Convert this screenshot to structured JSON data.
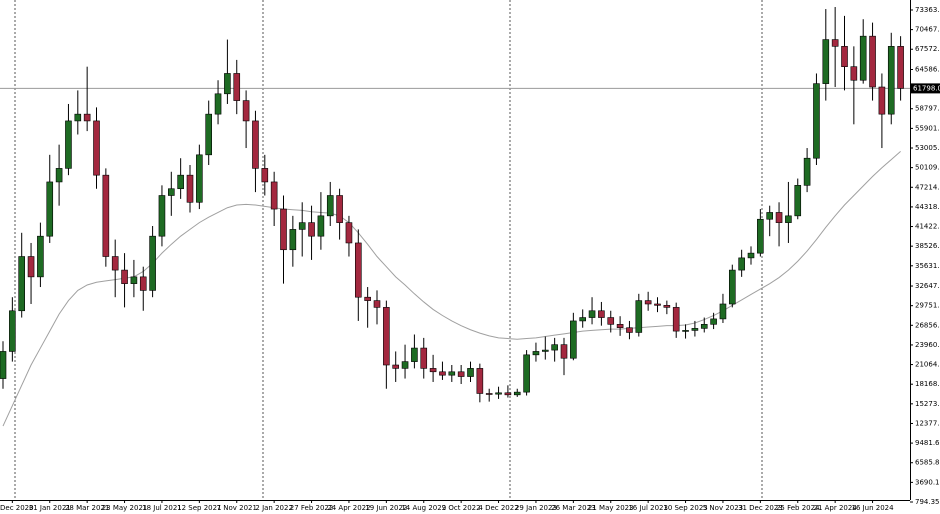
{
  "chart_data": {
    "type": "candlestick",
    "categories": [
      null,
      "Dec 2020",
      null,
      null,
      null,
      "31 Jan 2021",
      null,
      null,
      null,
      "28 Mar 2021",
      null,
      null,
      null,
      "23 May 2021",
      null,
      null,
      null,
      "18 Jul 2021",
      null,
      null,
      null,
      "12 Sep 2021",
      null,
      null,
      null,
      "7 Nov 2021",
      null,
      null,
      null,
      "2 Jan 2022",
      null,
      null,
      null,
      "27 Feb 2022",
      null,
      null,
      null,
      "24 Apr 2022",
      null,
      null,
      null,
      "19 Jun 2022",
      null,
      null,
      null,
      "14 Aug 2022",
      null,
      null,
      null,
      "9 Oct 2022",
      null,
      null,
      null,
      "4 Dec 2022",
      null,
      null,
      null,
      "29 Jan 2023",
      null,
      null,
      null,
      "26 Mar 2023",
      null,
      null,
      null,
      "21 May 2023",
      null,
      null,
      null,
      "16 Jul 2023",
      null,
      null,
      null,
      "10 Sep 2023",
      null,
      null,
      null,
      "5 Nov 2023",
      null,
      null,
      null,
      "31 Dec 2023",
      null,
      null,
      null,
      "25 Feb 2024",
      null,
      null,
      null,
      "21 Apr 2024",
      null,
      null,
      null,
      "16 Jun 2024",
      null,
      null,
      null
    ],
    "open": [
      19000,
      23000,
      29000,
      37000,
      34000,
      40000,
      48000,
      50000,
      57000,
      58000,
      57000,
      49000,
      37000,
      35000,
      33000,
      34000,
      32000,
      40000,
      46000,
      47000,
      49000,
      45000,
      52000,
      58000,
      61000,
      64000,
      60000,
      57000,
      50000,
      48000,
      44000,
      38000,
      41000,
      42000,
      40000,
      43000,
      46000,
      42000,
      39000,
      31000,
      30500,
      29500,
      21000,
      20500,
      21500,
      23500,
      20500,
      20000,
      19500,
      20000,
      19300,
      20500,
      16800,
      16700,
      16900,
      16600,
      17000,
      22500,
      23000,
      23200,
      24000,
      22000,
      27500,
      28000,
      29000,
      28000,
      27000,
      26500,
      25800,
      30500,
      30000,
      29800,
      29500,
      26000,
      26100,
      26400,
      27000,
      27800,
      30000,
      35000,
      36800,
      37500,
      42500,
      43500,
      42000,
      43000,
      47500,
      51500,
      62500,
      69000,
      68000,
      65000,
      63000,
      69500,
      62000,
      58000,
      68000
    ],
    "high": [
      24500,
      31000,
      40500,
      39000,
      42000,
      52000,
      53500,
      59500,
      61500,
      65000,
      59000,
      50000,
      39500,
      37500,
      36500,
      35500,
      41500,
      47500,
      49500,
      51500,
      50500,
      53500,
      60000,
      63000,
      69000,
      66000,
      61500,
      58500,
      52000,
      49500,
      46000,
      43000,
      45000,
      44500,
      46500,
      48000,
      47000,
      43000,
      41000,
      32500,
      32000,
      30500,
      23000,
      24000,
      25500,
      25000,
      22500,
      21500,
      21000,
      21000,
      21500,
      21200,
      17500,
      17800,
      18000,
      17500,
      23200,
      24300,
      25200,
      25000,
      25000,
      28700,
      29200,
      31000,
      30300,
      29000,
      28200,
      27500,
      31500,
      31800,
      31000,
      30500,
      30200,
      27000,
      27500,
      28000,
      28700,
      31500,
      35800,
      38000,
      38500,
      44000,
      44500,
      45000,
      48000,
      48500,
      53000,
      64000,
      73500,
      73800,
      72500,
      68000,
      72000,
      71500,
      64000,
      70000,
      69500
    ],
    "low": [
      17500,
      21500,
      28000,
      30000,
      32500,
      39000,
      44500,
      49000,
      55000,
      55500,
      47000,
      35500,
      31000,
      29500,
      31000,
      29000,
      31000,
      38500,
      43000,
      45500,
      43500,
      44000,
      50500,
      56500,
      59500,
      58000,
      53000,
      46500,
      46000,
      41500,
      33000,
      35500,
      37000,
      36500,
      38000,
      41500,
      39500,
      37000,
      27500,
      26500,
      27000,
      17500,
      18500,
      19000,
      20500,
      19000,
      18500,
      18800,
      18500,
      18200,
      18500,
      15500,
      15600,
      16000,
      16200,
      16300,
      16500,
      21500,
      21800,
      21500,
      19500,
      21700,
      26500,
      27000,
      26800,
      25800,
      25300,
      24800,
      25200,
      29000,
      28800,
      28500,
      25000,
      24900,
      25200,
      25800,
      26300,
      27200,
      29500,
      34000,
      35800,
      37000,
      40000,
      38500,
      39000,
      42500,
      46500,
      50500,
      60000,
      62000,
      61500,
      56500,
      62500,
      60000,
      53000,
      56500,
      60000
    ],
    "close": [
      23000,
      29000,
      37000,
      34000,
      40000,
      48000,
      50000,
      57000,
      58000,
      57000,
      49000,
      37000,
      35000,
      33000,
      34000,
      32000,
      40000,
      46000,
      47000,
      49000,
      45000,
      52000,
      58000,
      61000,
      64000,
      60000,
      57000,
      50000,
      48000,
      44000,
      38000,
      41000,
      42000,
      40000,
      43000,
      46000,
      42000,
      39000,
      31000,
      30500,
      29500,
      21000,
      20500,
      21500,
      23500,
      20500,
      20000,
      19500,
      20000,
      19300,
      20500,
      16800,
      16700,
      16900,
      16600,
      17000,
      22500,
      23000,
      23200,
      24000,
      22000,
      27500,
      28000,
      29000,
      28000,
      27000,
      26500,
      25800,
      30500,
      30000,
      29800,
      29500,
      26000,
      26100,
      26400,
      27000,
      27800,
      30000,
      35000,
      36800,
      37500,
      42500,
      43500,
      42000,
      43000,
      47500,
      51500,
      62500,
      69000,
      68000,
      65000,
      63000,
      69500,
      62000,
      58000,
      68000,
      61798.04
    ],
    "up_color": "#1e6b23",
    "down_color": "#a3283f",
    "ma": {
      "color": "#a0a0a0",
      "values": [
        12000,
        15000,
        18000,
        21000,
        23500,
        26000,
        28500,
        30500,
        32000,
        32800,
        33200,
        33400,
        33600,
        33800,
        34000,
        34800,
        36000,
        37500,
        38800,
        40000,
        41000,
        42000,
        42800,
        43500,
        44200,
        44600,
        44700,
        44600,
        44400,
        44200,
        44000,
        43900,
        43800,
        43600,
        43500,
        43400,
        43000,
        42000,
        40500,
        38800,
        37000,
        35500,
        34000,
        32800,
        31500,
        30300,
        29200,
        28300,
        27500,
        26800,
        26200,
        25700,
        25300,
        25000,
        24900,
        24800,
        24900,
        25000,
        25200,
        25400,
        25600,
        25800,
        26000,
        26100,
        26200,
        26300,
        26300,
        26400,
        26500,
        26600,
        26700,
        26800,
        26800,
        26900,
        27200,
        27700,
        28300,
        29000,
        29800,
        30600,
        31400,
        32200,
        33000,
        33900,
        35000,
        36300,
        37800,
        39500,
        41300,
        43000,
        44600,
        46000,
        47400,
        48800,
        50100,
        51300,
        52500
      ]
    },
    "ylim": [
      647,
      74835
    ],
    "yticks": [
      {
        "value": 73363.6,
        "label": "73363.60"
      },
      {
        "value": 70467.85,
        "label": "70467.85"
      },
      {
        "value": 67572.1,
        "label": "67572.10"
      },
      {
        "value": 64586.6,
        "label": "64586.60"
      },
      {
        "value": 58797.1,
        "label": "58797.10"
      },
      {
        "value": 55901.35,
        "label": "55901.35"
      },
      {
        "value": 53005.6,
        "label": "53005.60"
      },
      {
        "value": 50109.85,
        "label": "50109.85"
      },
      {
        "value": 47214.1,
        "label": "47214.10"
      },
      {
        "value": 44318.35,
        "label": "44318.35"
      },
      {
        "value": 41422.6,
        "label": "41422.60"
      },
      {
        "value": 38526.85,
        "label": "38526.85"
      },
      {
        "value": 35631.1,
        "label": "35631.10"
      },
      {
        "value": 32647.6,
        "label": "32647.60"
      },
      {
        "value": 29751.85,
        "label": "29751.85"
      },
      {
        "value": 26856.1,
        "label": "26856.10"
      },
      {
        "value": 23960.35,
        "label": "23960.35"
      },
      {
        "value": 21064.6,
        "label": "21064.60"
      },
      {
        "value": 18168.85,
        "label": "18168.85"
      },
      {
        "value": 15273.1,
        "label": "15273.10"
      },
      {
        "value": 12377.35,
        "label": "12377.35"
      },
      {
        "value": 9481.6,
        "label": "9481.60"
      },
      {
        "value": 6585.85,
        "label": "6585.85"
      },
      {
        "value": 3690.1,
        "label": "3690.10"
      },
      {
        "value": 794.35,
        "label": "794.35"
      }
    ],
    "current_price": {
      "value": 61798.04,
      "label": "61798.04"
    }
  }
}
